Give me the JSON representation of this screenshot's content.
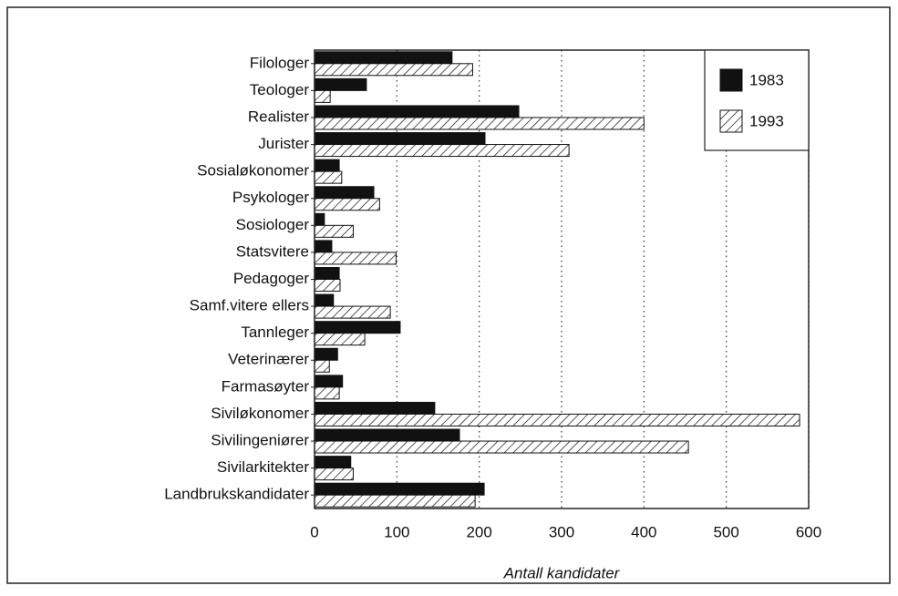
{
  "chart_data": {
    "type": "hbar",
    "xlabel": "Antall kandidater",
    "categories": [
      "Filologer",
      "Teologer",
      "Realister",
      "Jurister",
      "Sosialøkonomer",
      "Psykologer",
      "Sosiologer",
      "Statsvitere",
      "Pedagoger",
      "Samf.vitere ellers",
      "Tannleger",
      "Veterinærer",
      "Farmasøyter",
      "Siviløkonomer",
      "Sivilingeniører",
      "Sivilarkitekter",
      "Landbrukskandidater"
    ],
    "series": [
      {
        "name": "1983",
        "color": "#111111",
        "hatch": false,
        "values": [
          167,
          63,
          248,
          207,
          30,
          72,
          12,
          21,
          30,
          23,
          104,
          28,
          34,
          146,
          176,
          44,
          206
        ]
      },
      {
        "name": "1993",
        "color": "#111111",
        "hatch": true,
        "values": [
          192,
          19,
          400,
          309,
          33,
          79,
          47,
          99,
          31,
          92,
          61,
          18,
          30,
          589,
          454,
          47,
          195
        ]
      }
    ],
    "xlim": [
      0,
      600
    ],
    "xticks": [
      0,
      100,
      200,
      300,
      400,
      500,
      600
    ],
    "grid": true,
    "legend": "upper right"
  }
}
